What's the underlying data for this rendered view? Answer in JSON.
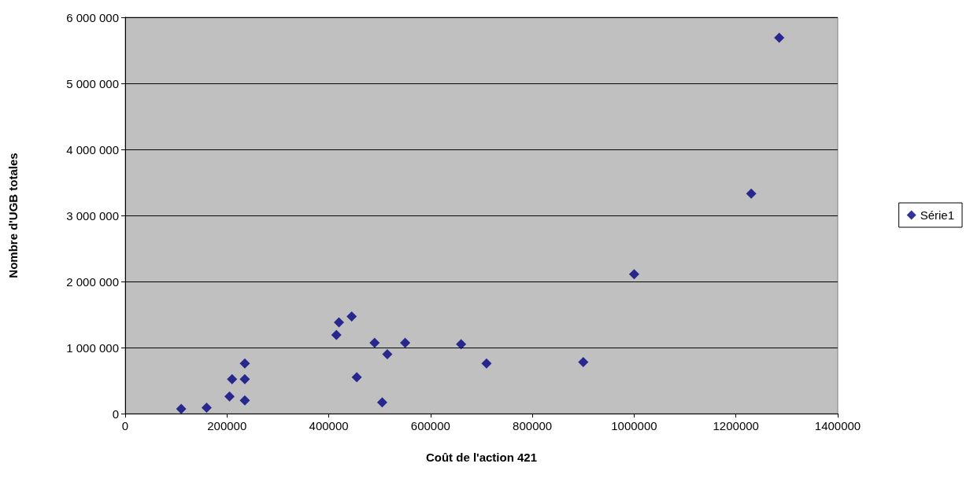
{
  "chart_data": {
    "type": "scatter",
    "xlabel": "Coût de l'action 421",
    "ylabel": "Nombre d'UGB totales",
    "x": [
      110000,
      160000,
      205000,
      210000,
      235000,
      235000,
      235000,
      415000,
      420000,
      445000,
      455000,
      490000,
      505000,
      515000,
      550000,
      660000,
      710000,
      900000,
      1000000,
      1230000,
      1285000
    ],
    "series": [
      {
        "name": "Série1",
        "color": "#000080",
        "values": [
          70000,
          90000,
          260000,
          520000,
          520000,
          760000,
          200000,
          1190000,
          1380000,
          1470000,
          550000,
          1070000,
          170000,
          900000,
          1070000,
          1050000,
          760000,
          780000,
          2110000,
          3330000,
          5690000
        ]
      }
    ],
    "xlim": [
      0,
      1400000
    ],
    "xticks": [
      0,
      200000,
      400000,
      600000,
      800000,
      1000000,
      1200000,
      1400000
    ],
    "ylim": [
      0,
      6000000
    ],
    "yticks": [
      0,
      {
        "value": 1000000,
        "label": "1 000 000"
      },
      {
        "value": 2000000,
        "label": "2 000 000"
      },
      {
        "value": 3000000,
        "label": "3 000 000"
      },
      {
        "value": 4000000,
        "label": "4 000 000"
      },
      {
        "value": 5000000,
        "label": "5 000 000"
      },
      {
        "value": 6000000,
        "label": "6 000 000"
      }
    ],
    "grid": "y",
    "legend": "right",
    "marker": "diamond"
  }
}
